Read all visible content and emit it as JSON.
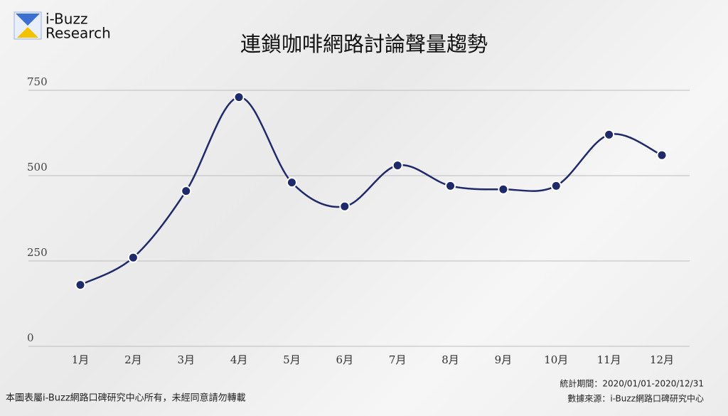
{
  "logo": {
    "line1": "i-Buzz",
    "line2": "Research"
  },
  "chart_data": {
    "type": "line",
    "title": "連鎖咖啡網路討論聲量趨勢",
    "categories": [
      "1月",
      "2月",
      "3月",
      "4月",
      "5月",
      "6月",
      "7月",
      "8月",
      "9月",
      "10月",
      "11月",
      "12月"
    ],
    "series": [
      {
        "name": "聲量",
        "color": "#1f2a6b",
        "values": [
          180,
          260,
          455,
          730,
          480,
          410,
          530,
          470,
          460,
          470,
          620,
          560
        ]
      }
    ],
    "ylim": [
      0,
      750
    ],
    "yticks": [
      0,
      250,
      500,
      750
    ],
    "grid": true
  },
  "footer": {
    "left": "本圖表屬i-Buzz網路口碑研究中心所有，未經同意請勿轉載",
    "period": "統計期間：2020/01/01-2020/12/31",
    "source": "數據來源：i-Buzz網路口碑研究中心"
  }
}
